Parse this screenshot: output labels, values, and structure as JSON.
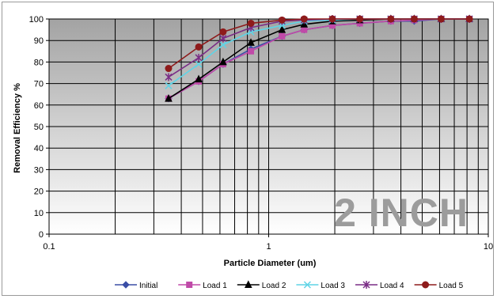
{
  "chart_data": {
    "type": "line",
    "title": "",
    "xlabel": "Particle Diameter (um)",
    "ylabel": "Removal Efficiency %",
    "x_scale": "log",
    "xlim": [
      0.1,
      10
    ],
    "ylim": [
      0,
      100
    ],
    "x_tick_labels": [
      "0.1",
      "1",
      "10"
    ],
    "y_tick_labels": [
      "0",
      "10",
      "20",
      "30",
      "40",
      "50",
      "60",
      "70",
      "80",
      "90",
      "100"
    ],
    "grid": true,
    "legend_position": "bottom",
    "annotation": "2 INCH",
    "x": [
      0.35,
      0.48,
      0.62,
      0.83,
      1.15,
      1.45,
      1.95,
      2.6,
      3.6,
      4.6,
      6.1,
      8.2
    ],
    "series": [
      {
        "name": "Initial",
        "color": "#3b4ea6",
        "marker": "diamond",
        "values": [
          63,
          71,
          79,
          86,
          92,
          95,
          97,
          98,
          99,
          99,
          100,
          100
        ]
      },
      {
        "name": "Load 1",
        "color": "#c04aa8",
        "marker": "square",
        "values": [
          63,
          71,
          79,
          85,
          92,
          95,
          97,
          98,
          99,
          99.5,
          100,
          100
        ]
      },
      {
        "name": "Load 2",
        "color": "#000000",
        "marker": "triangle",
        "values": [
          63,
          72,
          80,
          89,
          95,
          97.5,
          99,
          99.5,
          100,
          100,
          100,
          100
        ]
      },
      {
        "name": "Load 3",
        "color": "#5fd4e6",
        "marker": "x",
        "values": [
          69,
          79,
          88,
          94,
          97,
          99,
          99.5,
          100,
          100,
          100,
          100,
          100
        ]
      },
      {
        "name": "Load 4",
        "color": "#7a2d86",
        "marker": "star",
        "values": [
          73,
          82,
          91,
          96,
          99,
          99.5,
          100,
          100,
          100,
          100,
          100,
          100
        ]
      },
      {
        "name": "Load 5",
        "color": "#8e1b1b",
        "marker": "circle",
        "values": [
          77,
          87,
          94,
          98,
          99.5,
          100,
          100,
          100,
          100,
          100,
          100,
          100
        ]
      }
    ]
  }
}
